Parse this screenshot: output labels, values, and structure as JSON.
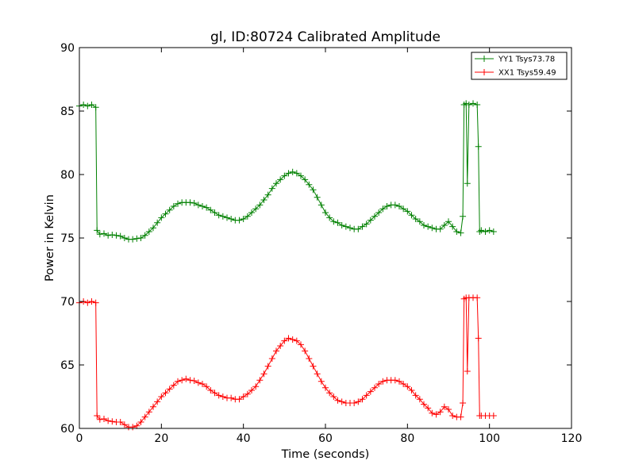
{
  "chart_data": {
    "type": "line",
    "title": "gl, ID:80724 Calibrated Amplitude",
    "xlabel": "Time (seconds)",
    "ylabel": "Power in Kelvin",
    "xlim": [
      0,
      120
    ],
    "ylim": [
      60,
      90
    ],
    "xticks": [
      0,
      20,
      40,
      60,
      80,
      100,
      120
    ],
    "yticks": [
      60,
      65,
      70,
      75,
      80,
      85,
      90
    ],
    "grid": false,
    "legend_position": "top-right",
    "marker": "plus",
    "series": [
      {
        "name": "YY1 Tsys73.78",
        "color": "#008000",
        "points": [
          [
            0,
            85.4
          ],
          [
            1,
            85.5
          ],
          [
            2,
            85.4
          ],
          [
            3,
            85.5
          ],
          [
            4,
            85.3
          ],
          [
            4.3,
            75.6
          ],
          [
            5,
            75.3
          ],
          [
            6,
            75.35
          ],
          [
            7,
            75.2
          ],
          [
            8,
            75.25
          ],
          [
            9,
            75.2
          ],
          [
            10,
            75.15
          ],
          [
            11,
            75.0
          ],
          [
            12,
            74.9
          ],
          [
            13,
            74.9
          ],
          [
            14,
            74.95
          ],
          [
            15,
            75.0
          ],
          [
            16,
            75.2
          ],
          [
            17,
            75.5
          ],
          [
            18,
            75.8
          ],
          [
            19,
            76.2
          ],
          [
            20,
            76.6
          ],
          [
            21,
            76.9
          ],
          [
            22,
            77.2
          ],
          [
            23,
            77.5
          ],
          [
            24,
            77.7
          ],
          [
            25,
            77.8
          ],
          [
            26,
            77.8
          ],
          [
            27,
            77.8
          ],
          [
            28,
            77.75
          ],
          [
            29,
            77.6
          ],
          [
            30,
            77.5
          ],
          [
            31,
            77.4
          ],
          [
            32,
            77.2
          ],
          [
            33,
            77.0
          ],
          [
            34,
            76.8
          ],
          [
            35,
            76.7
          ],
          [
            36,
            76.6
          ],
          [
            37,
            76.5
          ],
          [
            38,
            76.4
          ],
          [
            39,
            76.4
          ],
          [
            40,
            76.5
          ],
          [
            41,
            76.7
          ],
          [
            42,
            77.0
          ],
          [
            43,
            77.3
          ],
          [
            44,
            77.6
          ],
          [
            45,
            78.0
          ],
          [
            46,
            78.4
          ],
          [
            47,
            78.9
          ],
          [
            48,
            79.3
          ],
          [
            49,
            79.6
          ],
          [
            50,
            79.9
          ],
          [
            51,
            80.1
          ],
          [
            52,
            80.2
          ],
          [
            53,
            80.1
          ],
          [
            54,
            79.9
          ],
          [
            55,
            79.6
          ],
          [
            56,
            79.2
          ],
          [
            57,
            78.8
          ],
          [
            58,
            78.2
          ],
          [
            59,
            77.6
          ],
          [
            60,
            77.0
          ],
          [
            61,
            76.6
          ],
          [
            62,
            76.3
          ],
          [
            63,
            76.2
          ],
          [
            64,
            76.0
          ],
          [
            65,
            75.9
          ],
          [
            66,
            75.8
          ],
          [
            67,
            75.7
          ],
          [
            68,
            75.7
          ],
          [
            69,
            75.9
          ],
          [
            70,
            76.1
          ],
          [
            71,
            76.4
          ],
          [
            72,
            76.7
          ],
          [
            73,
            77.0
          ],
          [
            74,
            77.3
          ],
          [
            75,
            77.5
          ],
          [
            76,
            77.6
          ],
          [
            77,
            77.6
          ],
          [
            78,
            77.5
          ],
          [
            79,
            77.3
          ],
          [
            80,
            77.1
          ],
          [
            81,
            76.8
          ],
          [
            82,
            76.5
          ],
          [
            83,
            76.3
          ],
          [
            84,
            76.0
          ],
          [
            85,
            75.9
          ],
          [
            86,
            75.8
          ],
          [
            87,
            75.7
          ],
          [
            88,
            75.7
          ],
          [
            89,
            76.0
          ],
          [
            90,
            76.3
          ],
          [
            91,
            75.9
          ],
          [
            92,
            75.5
          ],
          [
            93,
            75.4
          ],
          [
            93.5,
            76.7
          ],
          [
            93.8,
            85.5
          ],
          [
            94.3,
            85.6
          ],
          [
            94.6,
            79.3
          ],
          [
            95,
            85.5
          ],
          [
            96,
            85.6
          ],
          [
            97,
            85.5
          ],
          [
            97.3,
            82.2
          ],
          [
            97.6,
            75.5
          ],
          [
            98,
            75.6
          ],
          [
            99,
            75.5
          ],
          [
            100,
            75.6
          ],
          [
            101,
            75.5
          ]
        ]
      },
      {
        "name": "XX1 Tsys59.49",
        "color": "#ff0000",
        "points": [
          [
            0,
            69.9
          ],
          [
            1,
            70.0
          ],
          [
            2,
            69.9
          ],
          [
            3,
            70.0
          ],
          [
            4,
            69.9
          ],
          [
            4.3,
            61.0
          ],
          [
            5,
            60.7
          ],
          [
            6,
            60.75
          ],
          [
            7,
            60.6
          ],
          [
            8,
            60.55
          ],
          [
            9,
            60.5
          ],
          [
            10,
            60.5
          ],
          [
            11,
            60.3
          ],
          [
            12,
            60.1
          ],
          [
            13,
            60.1
          ],
          [
            14,
            60.2
          ],
          [
            15,
            60.5
          ],
          [
            16,
            60.9
          ],
          [
            17,
            61.3
          ],
          [
            18,
            61.7
          ],
          [
            19,
            62.1
          ],
          [
            20,
            62.5
          ],
          [
            21,
            62.8
          ],
          [
            22,
            63.1
          ],
          [
            23,
            63.4
          ],
          [
            24,
            63.7
          ],
          [
            25,
            63.8
          ],
          [
            26,
            63.9
          ],
          [
            27,
            63.8
          ],
          [
            28,
            63.75
          ],
          [
            29,
            63.6
          ],
          [
            30,
            63.5
          ],
          [
            31,
            63.3
          ],
          [
            32,
            63.0
          ],
          [
            33,
            62.8
          ],
          [
            34,
            62.6
          ],
          [
            35,
            62.5
          ],
          [
            36,
            62.4
          ],
          [
            37,
            62.4
          ],
          [
            38,
            62.3
          ],
          [
            39,
            62.3
          ],
          [
            40,
            62.5
          ],
          [
            41,
            62.7
          ],
          [
            42,
            63.0
          ],
          [
            43,
            63.3
          ],
          [
            44,
            63.8
          ],
          [
            45,
            64.3
          ],
          [
            46,
            64.9
          ],
          [
            47,
            65.5
          ],
          [
            48,
            66.1
          ],
          [
            49,
            66.5
          ],
          [
            50,
            66.9
          ],
          [
            51,
            67.1
          ],
          [
            52,
            67.0
          ],
          [
            53,
            66.9
          ],
          [
            54,
            66.6
          ],
          [
            55,
            66.1
          ],
          [
            56,
            65.5
          ],
          [
            57,
            64.9
          ],
          [
            58,
            64.3
          ],
          [
            59,
            63.7
          ],
          [
            60,
            63.2
          ],
          [
            61,
            62.8
          ],
          [
            62,
            62.5
          ],
          [
            63,
            62.2
          ],
          [
            64,
            62.1
          ],
          [
            65,
            62.0
          ],
          [
            66,
            62.0
          ],
          [
            67,
            62.0
          ],
          [
            68,
            62.1
          ],
          [
            69,
            62.3
          ],
          [
            70,
            62.6
          ],
          [
            71,
            62.9
          ],
          [
            72,
            63.2
          ],
          [
            73,
            63.5
          ],
          [
            74,
            63.7
          ],
          [
            75,
            63.8
          ],
          [
            76,
            63.8
          ],
          [
            77,
            63.8
          ],
          [
            78,
            63.7
          ],
          [
            79,
            63.5
          ],
          [
            80,
            63.3
          ],
          [
            81,
            63.0
          ],
          [
            82,
            62.6
          ],
          [
            83,
            62.3
          ],
          [
            84,
            61.9
          ],
          [
            85,
            61.6
          ],
          [
            86,
            61.2
          ],
          [
            87,
            61.1
          ],
          [
            88,
            61.3
          ],
          [
            89,
            61.7
          ],
          [
            90,
            61.5
          ],
          [
            91,
            61.0
          ],
          [
            92,
            60.9
          ],
          [
            93,
            60.9
          ],
          [
            93.5,
            62.0
          ],
          [
            93.8,
            70.2
          ],
          [
            94.3,
            70.3
          ],
          [
            94.6,
            64.5
          ],
          [
            95,
            70.3
          ],
          [
            96,
            70.3
          ],
          [
            97,
            70.3
          ],
          [
            97.3,
            67.1
          ],
          [
            97.6,
            61.0
          ],
          [
            98,
            61.0
          ],
          [
            99,
            61.0
          ],
          [
            100,
            61.0
          ],
          [
            101,
            61.0
          ]
        ]
      }
    ]
  }
}
